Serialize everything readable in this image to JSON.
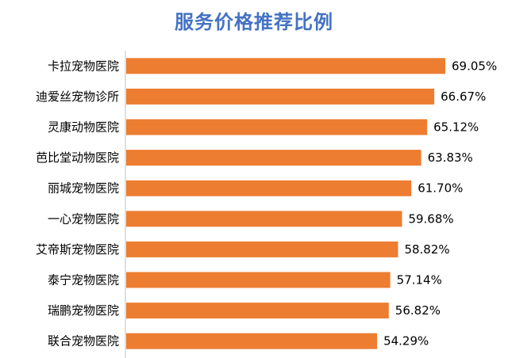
{
  "chart_data": {
    "type": "bar",
    "orientation": "horizontal",
    "title": "服务价格推荐比例",
    "categories": [
      "卡拉宠物医院",
      "迪爱丝宠物诊所",
      "灵康动物医院",
      "芭比堂动物医院",
      "丽城宠物医院",
      "一心宠物医院",
      "艾帝斯宠物医院",
      "泰宁宠物医院",
      "瑞鹏宠物医院",
      "联合宠物医院"
    ],
    "values": [
      69.05,
      66.67,
      65.12,
      63.83,
      61.7,
      59.68,
      58.82,
      57.14,
      56.82,
      54.29
    ],
    "value_labels": [
      "69.05%",
      "66.67%",
      "65.12%",
      "63.83%",
      "61.70%",
      "59.68%",
      "58.82%",
      "57.14%",
      "56.82%",
      "54.29%"
    ],
    "bar_color": "#ED7D31",
    "title_color": "#4472C4",
    "axis_color": "#BFBFBF",
    "xlim": [
      0,
      100
    ],
    "grid": false,
    "legend": "none"
  }
}
